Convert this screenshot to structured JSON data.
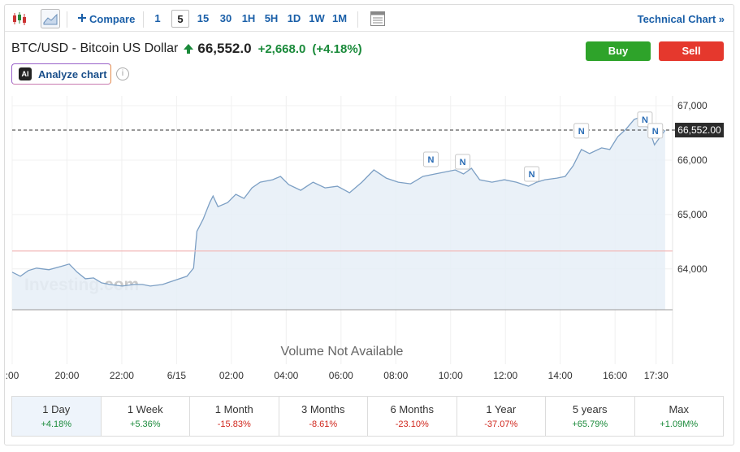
{
  "toolbar": {
    "compare": "Compare",
    "intervals": [
      "1",
      "5",
      "15",
      "30",
      "1H",
      "5H",
      "1D",
      "1W",
      "1M"
    ],
    "active_interval": "5",
    "technical_chart": "Technical Chart »"
  },
  "header": {
    "title": "BTC/USD - Bitcoin US Dollar",
    "price": "66,552.0",
    "change": "+2,668.0",
    "change_pct": "(+4.18%)",
    "buy": "Buy",
    "sell": "Sell",
    "ai_badge": "AI",
    "analyze": "Analyze chart",
    "info": "i"
  },
  "chart_data": {
    "type": "area",
    "color": "#7c9fc4",
    "fill": "#e6eef7",
    "x": [
      18.0,
      18.3,
      18.59,
      18.89,
      19.34,
      19.78,
      20.08,
      20.37,
      20.67,
      20.97,
      21.26,
      21.56,
      22.01,
      22.45,
      22.75,
      23.04,
      23.49,
      23.93,
      24.38,
      24.62,
      24.74,
      24.97,
      25.21,
      25.33,
      25.51,
      25.86,
      26.16,
      26.46,
      26.75,
      27.05,
      27.5,
      27.79,
      28.09,
      28.53,
      28.98,
      29.42,
      29.87,
      30.31,
      30.76,
      31.2,
      31.65,
      32.09,
      32.54,
      32.99,
      33.43,
      33.88,
      34.17,
      34.47,
      34.76,
      35.06,
      35.51,
      35.96,
      36.4,
      36.84,
      37.14,
      37.44,
      37.88,
      38.18,
      38.47,
      38.77,
      39.07,
      39.51,
      39.81,
      40.1,
      40.4,
      40.7,
      40.99,
      41.29,
      41.44,
      41.65,
      41.83
    ],
    "values": [
      63940,
      63865,
      63970,
      64015,
      63985,
      64045,
      64090,
      63940,
      63820,
      63835,
      63745,
      63715,
      63685,
      63715,
      63715,
      63685,
      63715,
      63790,
      63865,
      64015,
      64690,
      64915,
      65220,
      65340,
      65145,
      65220,
      65370,
      65295,
      65490,
      65595,
      65640,
      65700,
      65550,
      65445,
      65595,
      65490,
      65520,
      65400,
      65595,
      65820,
      65670,
      65595,
      65565,
      65700,
      65745,
      65790,
      65820,
      65745,
      65850,
      65640,
      65595,
      65640,
      65595,
      65520,
      65595,
      65640,
      65670,
      65700,
      65895,
      66195,
      66120,
      66225,
      66195,
      66430,
      66570,
      66750,
      66800,
      66505,
      66280,
      66430,
      66552
    ],
    "xlim": [
      18,
      42.1
    ],
    "xticks": [
      {
        "value": 18,
        "label": ":00"
      },
      {
        "value": 20,
        "label": "20:00"
      },
      {
        "value": 22,
        "label": "22:00"
      },
      {
        "value": 24,
        "label": "6/15"
      },
      {
        "value": 26,
        "label": "02:00"
      },
      {
        "value": 28,
        "label": "04:00"
      },
      {
        "value": 30,
        "label": "06:00"
      },
      {
        "value": 32,
        "label": "08:00"
      },
      {
        "value": 34,
        "label": "10:00"
      },
      {
        "value": 36,
        "label": "12:00"
      },
      {
        "value": 38,
        "label": "14:00"
      },
      {
        "value": 40,
        "label": "16:00"
      },
      {
        "value": 41.5,
        "label": "17:30"
      }
    ],
    "ylim": [
      63250,
      67180
    ],
    "yticks": [
      {
        "value": 64000,
        "label": "64,000"
      },
      {
        "value": 65000,
        "label": "65,000"
      },
      {
        "value": 66000,
        "label": "66,000"
      },
      {
        "value": 67000,
        "label": "67,000"
      }
    ],
    "grid": true,
    "last_price": {
      "value": 66552,
      "label": "66,552.00"
    },
    "reference_line": {
      "value": 64330,
      "color": "#f2b8b8"
    },
    "annotations": [
      {
        "x": 33.28,
        "y": 66015,
        "text": "N"
      },
      {
        "x": 34.44,
        "y": 65970,
        "text": "N"
      },
      {
        "x": 36.96,
        "y": 65745,
        "text": "N"
      },
      {
        "x": 38.77,
        "y": 66540,
        "text": "N"
      },
      {
        "x": 41.09,
        "y": 66750,
        "text": "N"
      },
      {
        "x": 41.47,
        "y": 66540,
        "text": "N"
      }
    ],
    "watermark": "Investing.com",
    "volume_note": "Volume Not Available"
  },
  "periods": [
    {
      "name": "1 Day",
      "change": "+4.18%"
    },
    {
      "name": "1 Week",
      "change": "+5.36%"
    },
    {
      "name": "1 Month",
      "change": "-15.83%"
    },
    {
      "name": "3 Months",
      "change": "-8.61%"
    },
    {
      "name": "6 Months",
      "change": "-23.10%"
    },
    {
      "name": "1 Year",
      "change": "-37.07%"
    },
    {
      "name": "5 years",
      "change": "+65.79%"
    },
    {
      "name": "Max",
      "change": "+1.09M%"
    }
  ],
  "active_period": "1 Day"
}
